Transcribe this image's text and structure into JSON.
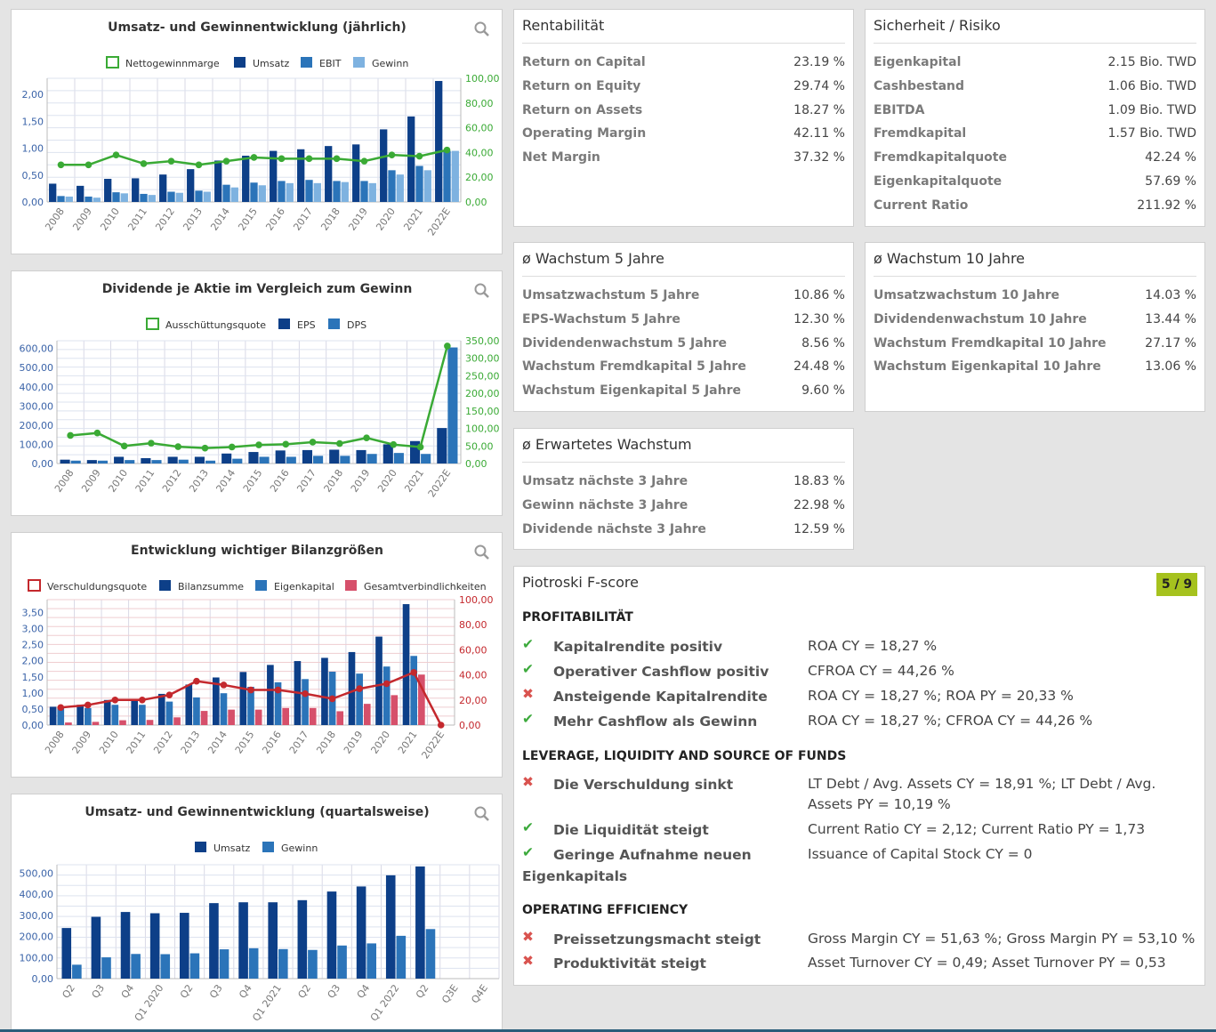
{
  "colors": {
    "dark_blue": "#0d3f88",
    "mid_blue": "#2b74b9",
    "light_blue": "#7eb2e0",
    "green": "#3aaa35",
    "red": "#c4282d",
    "pink": "#d6506b",
    "badge": "#a6c21e"
  },
  "charts": {
    "c1": {
      "title": "Umsatz- und Gewinnentwicklung (jährlich)",
      "search_icon": "magnifier-icon",
      "legend": [
        "Nettogewinnmarge",
        "Umsatz",
        "EBIT",
        "Gewinn"
      ],
      "yleft_ticks": [
        "2,00",
        "1,50",
        "1,00",
        "0,50",
        "0,00"
      ],
      "yright_ticks": [
        "100,00",
        "80,00",
        "60,00",
        "40,00",
        "20,00",
        "0,00"
      ]
    },
    "c2": {
      "title": "Dividende je Aktie im Vergleich zum Gewinn",
      "search_icon": "magnifier-icon",
      "legend": [
        "Ausschüttungsquote",
        "EPS",
        "DPS"
      ],
      "yleft_ticks": [
        "600,00",
        "500,00",
        "400,00",
        "300,00",
        "200,00",
        "100,00",
        "0,00"
      ],
      "yright_ticks": [
        "350,00",
        "300,00",
        "250,00",
        "200,00",
        "150,00",
        "100,00",
        "50,00",
        "0,00"
      ]
    },
    "c3": {
      "title": "Entwicklung wichtiger Bilanzgrößen",
      "search_icon": "magnifier-icon",
      "legend": [
        "Verschuldungsquote",
        "Bilanzsumme",
        "Eigenkapital",
        "Gesamtverbindlichkeiten"
      ],
      "yleft_ticks": [
        "3,50",
        "3,00",
        "2,50",
        "2,00",
        "1,50",
        "1,00",
        "0,50",
        "0,00"
      ],
      "yright_ticks": [
        "100,00",
        "80,00",
        "60,00",
        "40,00",
        "20,00",
        "0,00"
      ]
    },
    "c4": {
      "title": "Umsatz- und Gewinnentwicklung (quartalsweise)",
      "search_icon": "magnifier-icon",
      "legend": [
        "Umsatz",
        "Gewinn"
      ],
      "yleft_ticks": [
        "500,00",
        "400,00",
        "300,00",
        "200,00",
        "100,00",
        "0,00"
      ]
    }
  },
  "chart_data": [
    {
      "type": "bar",
      "title": "Umsatz- und Gewinnentwicklung (jährlich)",
      "categories": [
        "2008",
        "2009",
        "2010",
        "2011",
        "2012",
        "2013",
        "2014",
        "2015",
        "2016",
        "2017",
        "2018",
        "2019",
        "2020",
        "2021",
        "2022E"
      ],
      "ylim": [
        0,
        2.3
      ],
      "y2lim": [
        0,
        100
      ],
      "grid": true,
      "legend_position": "top",
      "series": [
        {
          "name": "Umsatz",
          "axis": "left",
          "values": [
            0.34,
            0.3,
            0.43,
            0.44,
            0.51,
            0.61,
            0.77,
            0.86,
            0.95,
            0.98,
            1.04,
            1.07,
            1.35,
            1.59,
            2.25
          ]
        },
        {
          "name": "EBIT",
          "axis": "left",
          "values": [
            0.11,
            0.1,
            0.18,
            0.15,
            0.19,
            0.21,
            0.32,
            0.36,
            0.39,
            0.41,
            0.39,
            0.39,
            0.59,
            0.67,
            0.95
          ]
        },
        {
          "name": "Gewinn",
          "axis": "left",
          "values": [
            0.1,
            0.08,
            0.16,
            0.13,
            0.17,
            0.19,
            0.27,
            0.31,
            0.35,
            0.35,
            0.37,
            0.35,
            0.51,
            0.59,
            0.95
          ]
        },
        {
          "name": "Nettogewinnmarge",
          "type": "line",
          "axis": "right",
          "values": [
            30,
            30,
            38,
            31,
            33,
            30,
            33,
            36,
            35,
            35,
            35,
            33,
            38,
            37,
            42
          ]
        }
      ]
    },
    {
      "type": "bar",
      "title": "Dividende je Aktie im Vergleich zum Gewinn",
      "categories": [
        "2008",
        "2009",
        "2010",
        "2011",
        "2012",
        "2013",
        "2014",
        "2015",
        "2016",
        "2017",
        "2018",
        "2019",
        "2020",
        "2021",
        "2022E"
      ],
      "ylim": [
        0,
        640
      ],
      "y2lim": [
        0,
        350
      ],
      "grid": true,
      "legend_position": "top",
      "series": [
        {
          "name": "EPS",
          "axis": "left",
          "values": [
            20,
            18,
            35,
            28,
            35,
            35,
            52,
            60,
            68,
            70,
            72,
            70,
            100,
            117,
            185
          ]
        },
        {
          "name": "DPS",
          "axis": "left",
          "values": [
            15,
            15,
            18,
            18,
            20,
            15,
            25,
            35,
            35,
            40,
            40,
            50,
            55,
            50,
            605
          ]
        },
        {
          "name": "Ausschüttungsquote",
          "type": "line",
          "axis": "right",
          "values": [
            80,
            87,
            50,
            58,
            48,
            44,
            47,
            53,
            55,
            61,
            57,
            73,
            54,
            47,
            335
          ]
        }
      ]
    },
    {
      "type": "bar",
      "title": "Entwicklung wichtiger Bilanzgrößen",
      "categories": [
        "2008",
        "2009",
        "2010",
        "2011",
        "2012",
        "2013",
        "2014",
        "2015",
        "2016",
        "2017",
        "2018",
        "2019",
        "2020",
        "2021",
        "2022E"
      ],
      "ylim": [
        0,
        3.9
      ],
      "y2lim": [
        0,
        100
      ],
      "grid": true,
      "legend_position": "top",
      "series": [
        {
          "name": "Bilanzsumme",
          "axis": "left",
          "values": [
            0.57,
            0.63,
            0.78,
            0.79,
            0.97,
            1.26,
            1.48,
            1.65,
            1.87,
            1.99,
            2.09,
            2.27,
            2.75,
            3.76,
            0
          ]
        },
        {
          "name": "Eigenkapital",
          "axis": "left",
          "values": [
            0.54,
            0.53,
            0.63,
            0.63,
            0.73,
            0.86,
            0.99,
            1.19,
            1.33,
            1.43,
            1.66,
            1.6,
            1.82,
            2.15,
            0
          ]
        },
        {
          "name": "Gesamtverbindlichkeiten",
          "axis": "left",
          "values": [
            0.08,
            0.1,
            0.15,
            0.16,
            0.24,
            0.44,
            0.48,
            0.48,
            0.53,
            0.53,
            0.43,
            0.66,
            0.93,
            1.57,
            0
          ]
        },
        {
          "name": "Verschuldungsquote",
          "type": "line",
          "axis": "right",
          "values": [
            14,
            16,
            20,
            20,
            24,
            35,
            32,
            28,
            28,
            25,
            21,
            29,
            33,
            42,
            0
          ]
        }
      ]
    },
    {
      "type": "bar",
      "title": "Umsatz- und Gewinnentwicklung (quartalsweise)",
      "categories": [
        "Q2",
        "Q3",
        "Q4",
        "Q1 2020",
        "Q2",
        "Q3",
        "Q4",
        "Q1 2021",
        "Q2",
        "Q3",
        "Q4",
        "Q1 2022",
        "Q2",
        "Q3E",
        "Q4E"
      ],
      "ylim": [
        0,
        540
      ],
      "grid": true,
      "legend_position": "top",
      "series": [
        {
          "name": "Umsatz",
          "values": [
            240,
            293,
            316,
            310,
            312,
            358,
            362,
            362,
            372,
            413,
            437,
            490,
            532,
            0,
            0
          ]
        },
        {
          "name": "Gewinn",
          "values": [
            66,
            101,
            117,
            116,
            120,
            139,
            144,
            140,
            136,
            157,
            167,
            203,
            235,
            0,
            0
          ]
        }
      ]
    }
  ],
  "rentabilitaet": {
    "title": "Rentabilität",
    "rows": [
      {
        "label": "Return on Capital",
        "value": "23.19 %"
      },
      {
        "label": "Return on Equity",
        "value": "29.74 %"
      },
      {
        "label": "Return on Assets",
        "value": "18.27 %"
      },
      {
        "label": "Operating Margin",
        "value": "42.11 %"
      },
      {
        "label": "Net Margin",
        "value": "37.32 %"
      }
    ]
  },
  "sicherheit": {
    "title": "Sicherheit / Risiko",
    "rows": [
      {
        "label": "Eigenkapital",
        "value": "2.15 Bio. TWD"
      },
      {
        "label": "Cashbestand",
        "value": "1.06 Bio. TWD"
      },
      {
        "label": "EBITDA",
        "value": "1.09 Bio. TWD"
      },
      {
        "label": "Fremdkapital",
        "value": "1.57 Bio. TWD"
      },
      {
        "label": "Fremdkapitalquote",
        "value": "42.24 %"
      },
      {
        "label": "Eigenkapitalquote",
        "value": "57.69 %"
      },
      {
        "label": "Current Ratio",
        "value": "211.92 %"
      }
    ]
  },
  "wachstum5": {
    "title": "ø Wachstum 5 Jahre",
    "rows": [
      {
        "label": "Umsatzwachstum 5 Jahre",
        "value": "10.86 %"
      },
      {
        "label": "EPS-Wachstum 5 Jahre",
        "value": "12.30 %"
      },
      {
        "label": "Dividendenwachstum 5 Jahre",
        "value": "8.56 %"
      },
      {
        "label": "Wachstum Fremdkapital 5 Jahre",
        "value": "24.48 %"
      },
      {
        "label": "Wachstum Eigenkapital 5 Jahre",
        "value": "9.60 %"
      }
    ]
  },
  "wachstum10": {
    "title": "ø Wachstum 10 Jahre",
    "rows": [
      {
        "label": "Umsatzwachstum 10 Jahre",
        "value": "14.03 %"
      },
      {
        "label": "Dividendenwachstum 10 Jahre",
        "value": "13.44 %"
      },
      {
        "label": "Wachstum Fremdkapital 10 Jahre",
        "value": "27.17 %"
      },
      {
        "label": "Wachstum Eigenkapital 10 Jahre",
        "value": "13.06 %"
      }
    ]
  },
  "erwartet": {
    "title": "ø Erwartetes Wachstum",
    "rows": [
      {
        "label": "Umsatz nächste 3 Jahre",
        "value": "18.83 %"
      },
      {
        "label": "Gewinn nächste 3 Jahre",
        "value": "22.98 %"
      },
      {
        "label": "Dividende nächste 3 Jahre",
        "value": "12.59 %"
      }
    ]
  },
  "piotroski": {
    "title": "Piotroski F-score",
    "score": "5 / 9",
    "check_icon": "check-icon",
    "cross_icon": "cross-icon",
    "sections": [
      {
        "heading": "PROFITABILITÄT",
        "items": [
          {
            "ok": true,
            "mark": "✔",
            "label": "Kapitalrendite positiv",
            "value": "ROA CY = 18,27 %"
          },
          {
            "ok": true,
            "mark": "✔",
            "label": "Operativer Cashflow positiv",
            "value": "CFROA CY = 44,26 %"
          },
          {
            "ok": false,
            "mark": "✖",
            "label": "Ansteigende Kapitalrendite",
            "value": "ROA CY = 18,27 %; ROA PY = 20,33 %"
          },
          {
            "ok": true,
            "mark": "✔",
            "label": "Mehr Cashflow als Gewinn",
            "value": "ROA CY = 18,27 %; CFROA CY = 44,26 %"
          }
        ]
      },
      {
        "heading": "LEVERAGE, LIQUIDITY AND SOURCE OF FUNDS",
        "items": [
          {
            "ok": false,
            "mark": "✖",
            "label": "Die Verschuldung sinkt",
            "value": "LT Debt / Avg. Assets CY = 18,91 %; LT Debt / Avg. Assets PY = 10,19 %"
          },
          {
            "ok": true,
            "mark": "✔",
            "label": "Die Liquidität steigt",
            "value": "Current Ratio CY = 2,12; Current Ratio PY = 1,73"
          },
          {
            "ok": true,
            "mark": "✔",
            "label": "Geringe Aufnahme neuen Eigenkapitals",
            "value": "Issuance of Capital Stock CY = 0"
          }
        ]
      },
      {
        "heading": "OPERATING EFFICIENCY",
        "items": [
          {
            "ok": false,
            "mark": "✖",
            "label": "Preissetzungsmacht steigt",
            "value": "Gross Margin CY = 51,63 %; Gross Margin PY = 53,10 %"
          },
          {
            "ok": false,
            "mark": "✖",
            "label": "Produktivität steigt",
            "value": "Asset Turnover CY = 0,49; Asset Turnover PY = 0,53"
          }
        ]
      }
    ]
  }
}
